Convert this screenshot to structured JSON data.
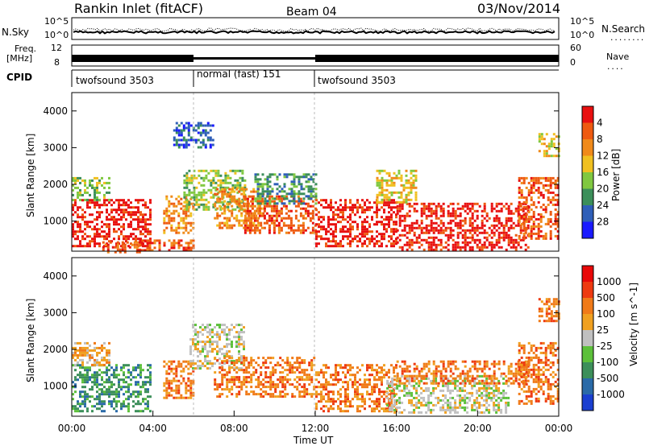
{
  "header": {
    "station": "Rankin Inlet (fitACF)",
    "beam": "Beam 04",
    "date": "03/Nov/2014"
  },
  "status_panels": {
    "nsky": {
      "label": "N.Sky",
      "left_ticks": [
        "10^5",
        "10^0"
      ],
      "right_label": "N.Search",
      "right_ticks": [
        "10^5",
        "10^0"
      ]
    },
    "freq": {
      "label_line1": "Freq.",
      "label_line2": "[MHz]",
      "left_ticks": [
        "12",
        "8"
      ],
      "right_label": "Nave",
      "right_ticks": [
        "60",
        "0"
      ]
    },
    "cpid": {
      "label": "CPID",
      "segments": [
        {
          "text": "twofsound 3503",
          "start_h": 0,
          "end_h": 6
        },
        {
          "text": "normal (fast) 151",
          "start_h": 6,
          "end_h": 11.9
        },
        {
          "text": "twofsound 3503",
          "start_h": 11.9,
          "end_h": 24
        }
      ]
    }
  },
  "chart_data": [
    {
      "type": "heatmap",
      "name": "power",
      "xlabel": "",
      "ylabel": "Slant Range [km]",
      "xlim": [
        0,
        24
      ],
      "ylim": [
        180,
        4500
      ],
      "y_ticks": [
        1000,
        2000,
        3000,
        4000
      ],
      "x_ticks": [
        0,
        4,
        8,
        12,
        16,
        20,
        24
      ],
      "colorbar": {
        "label": "Power [dB]",
        "ticks": [
          "4",
          "8",
          "12",
          "16",
          "20",
          "24",
          "28"
        ],
        "colors": [
          "#1a1aff",
          "#2f5fb8",
          "#3c8f5a",
          "#80c840",
          "#f0c020",
          "#f08a1a",
          "#ee5a10",
          "#e81010"
        ]
      },
      "echo_regions": [
        {
          "t0": 0.0,
          "t1": 3.9,
          "r0": 300,
          "r1": 1600,
          "level": 7
        },
        {
          "t0": 0.0,
          "t1": 1.8,
          "r0": 1600,
          "r1": 2200,
          "level": 3
        },
        {
          "t0": 1.5,
          "t1": 3.5,
          "r0": 180,
          "r1": 450,
          "level": 6
        },
        {
          "t0": 4.5,
          "t1": 6.0,
          "r0": 700,
          "r1": 1700,
          "level": 5
        },
        {
          "t0": 3.2,
          "t1": 6.0,
          "r0": 200,
          "r1": 500,
          "level": 6
        },
        {
          "t0": 5.5,
          "t1": 8.5,
          "r0": 1300,
          "r1": 2400,
          "level": 3
        },
        {
          "t0": 7.0,
          "t1": 9.5,
          "r0": 800,
          "r1": 1900,
          "level": 5
        },
        {
          "t0": 8.5,
          "t1": 12.0,
          "r0": 700,
          "r1": 1700,
          "level": 6
        },
        {
          "t0": 9.0,
          "t1": 12.0,
          "r0": 1500,
          "r1": 2300,
          "level": 2
        },
        {
          "t0": 12.0,
          "t1": 16.0,
          "r0": 300,
          "r1": 1600,
          "level": 7
        },
        {
          "t0": 16.0,
          "t1": 22.5,
          "r0": 250,
          "r1": 1500,
          "level": 7
        },
        {
          "t0": 15.0,
          "t1": 17.0,
          "r0": 1500,
          "r1": 2400,
          "level": 4
        },
        {
          "t0": 22.0,
          "t1": 24.0,
          "r0": 500,
          "r1": 2200,
          "level": 6
        },
        {
          "t0": 23.0,
          "t1": 24.0,
          "r0": 2800,
          "r1": 3400,
          "level": 4
        },
        {
          "t0": 5.0,
          "t1": 7.0,
          "r0": 3000,
          "r1": 3700,
          "level": 1
        }
      ]
    },
    {
      "type": "heatmap",
      "name": "velocity",
      "xlabel": "Time UT",
      "ylabel": "Slant Range [km]",
      "xlim": [
        0,
        24
      ],
      "ylim": [
        180,
        4500
      ],
      "y_ticks": [
        1000,
        2000,
        3000,
        4000
      ],
      "x_ticks": [
        0,
        4,
        8,
        12,
        16,
        20,
        24
      ],
      "x_tick_labels": [
        "00:00",
        "04:00",
        "08:00",
        "12:00",
        "16:00",
        "20:00",
        "00:00"
      ],
      "colorbar": {
        "label": "Velocity [m s^-1]",
        "ticks": [
          "1000",
          "500",
          "100",
          "25",
          "-25",
          "-100",
          "-500",
          "-1000"
        ],
        "colors": [
          "#1a3fd0",
          "#2a6aa8",
          "#3c8f5a",
          "#5cc03a",
          "#c0c0c0",
          "#f0a020",
          "#f07a18",
          "#ee3a10",
          "#e80808"
        ]
      },
      "echo_regions": [
        {
          "t0": 0.0,
          "t1": 3.9,
          "r0": 300,
          "r1": 1600,
          "level": 2
        },
        {
          "t0": 0.0,
          "t1": 1.8,
          "r0": 1600,
          "r1": 2200,
          "level": 5
        },
        {
          "t0": 4.5,
          "t1": 6.0,
          "r0": 700,
          "r1": 1700,
          "level": 6
        },
        {
          "t0": 5.8,
          "t1": 8.5,
          "r0": 1500,
          "r1": 2700,
          "level": 4
        },
        {
          "t0": 7.0,
          "t1": 12.0,
          "r0": 700,
          "r1": 1800,
          "level": 6
        },
        {
          "t0": 12.0,
          "t1": 16.0,
          "r0": 300,
          "r1": 1600,
          "level": 6
        },
        {
          "t0": 15.5,
          "t1": 21.5,
          "r0": 250,
          "r1": 1300,
          "level": 4
        },
        {
          "t0": 16.0,
          "t1": 22.5,
          "r0": 1100,
          "r1": 1700,
          "level": 6
        },
        {
          "t0": 22.0,
          "t1": 24.0,
          "r0": 500,
          "r1": 2200,
          "level": 6
        },
        {
          "t0": 23.0,
          "t1": 24.0,
          "r0": 2800,
          "r1": 3400,
          "level": 6
        }
      ]
    }
  ]
}
